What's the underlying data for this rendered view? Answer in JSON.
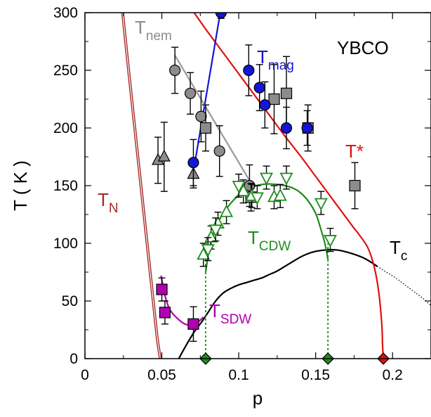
{
  "chart_data": {
    "type": "scatter",
    "title": "",
    "xlabel": "p",
    "ylabel": "T ( K )",
    "xlim": [
      0,
      0.225
    ],
    "ylim": [
      0,
      300
    ],
    "xticks": [
      0,
      0.05,
      0.1,
      0.15,
      0.2
    ],
    "xtick_labels": [
      "0",
      "0.05",
      "0.1",
      "0.15",
      "0.2"
    ],
    "yticks": [
      0,
      50,
      100,
      150,
      200,
      250,
      300
    ],
    "ytick_labels": [
      "0",
      "50",
      "100",
      "150",
      "200",
      "250",
      "300"
    ],
    "grid": false,
    "material_label": "YBCO",
    "annotations": [
      {
        "id": "tnem",
        "main": "T",
        "sub": "nem",
        "color": "#8c8c8c"
      },
      {
        "id": "tmag",
        "main": "T",
        "sub": "mag",
        "color": "#1515d6"
      },
      {
        "id": "tstar",
        "main": "T*",
        "sub": "",
        "color": "#e01010"
      },
      {
        "id": "tn",
        "main": "T",
        "sub": "N",
        "color": "#a52a2a"
      },
      {
        "id": "tcdw",
        "main": "T",
        "sub": "CDW",
        "color": "#1e8c1e"
      },
      {
        "id": "tc",
        "main": "T",
        "sub": "c",
        "color": "#000000"
      },
      {
        "id": "tsdw",
        "main": "T",
        "sub": "SDW",
        "color": "#b000b0"
      }
    ],
    "curves": [
      {
        "id": "tn",
        "color": "#a52a2a",
        "double": true,
        "dashed": false,
        "x": [
          0.0245,
          0.028,
          0.032,
          0.036,
          0.04,
          0.044,
          0.047,
          0.049
        ],
        "y": [
          300,
          255,
          205,
          155,
          105,
          55,
          18,
          0
        ]
      },
      {
        "id": "tc",
        "color": "#000000",
        "double": false,
        "dashed": false,
        "x": [
          0.061,
          0.066,
          0.071,
          0.076,
          0.08,
          0.085,
          0.09,
          0.095,
          0.1,
          0.105,
          0.11,
          0.115,
          0.12,
          0.125,
          0.13,
          0.135,
          0.14,
          0.145,
          0.15,
          0.155,
          0.16,
          0.165,
          0.17,
          0.175,
          0.18,
          0.185,
          0.19
        ],
        "y": [
          0,
          12,
          23,
          32,
          40,
          50,
          57,
          61,
          64,
          66,
          68,
          70,
          73,
          76,
          80,
          84,
          88,
          91,
          93,
          94,
          94.5,
          94,
          92.5,
          90.5,
          88,
          84.5,
          80
        ]
      },
      {
        "id": "tc-ext",
        "color": "#000000",
        "double": false,
        "dashed": true,
        "x": [
          0.19,
          0.196,
          0.202,
          0.208,
          0.214,
          0.22,
          0.225
        ],
        "y": [
          80,
          75,
          70,
          64,
          58,
          52,
          46
        ]
      },
      {
        "id": "tstar",
        "color": "#e01010",
        "double": false,
        "dashed": false,
        "x": [
          0.071,
          0.08,
          0.09,
          0.1,
          0.11,
          0.12,
          0.13,
          0.14,
          0.15,
          0.16,
          0.17,
          0.175,
          0.178,
          0.184,
          0.188,
          0.191,
          0.193,
          0.1935,
          0.194
        ],
        "y": [
          300,
          283,
          265,
          247,
          229,
          211,
          193,
          176,
          158,
          140,
          122,
          113,
          108,
          96,
          80,
          58,
          30,
          12,
          0
        ]
      },
      {
        "id": "tmag",
        "color": "#1515d6",
        "double": false,
        "dashed": false,
        "x": [
          0.0715,
          0.088
        ],
        "y": [
          170,
          300
        ]
      },
      {
        "id": "tnem",
        "color": "#999999",
        "double": false,
        "dashed": false,
        "x": [
          0.0585,
          0.109
        ],
        "y": [
          263,
          150
        ]
      },
      {
        "id": "tcdw",
        "color": "#1e8c1e",
        "double": false,
        "dashed": false,
        "x": [
          0.0785,
          0.081,
          0.085,
          0.09,
          0.095,
          0.1,
          0.105,
          0.11,
          0.115,
          0.12,
          0.125,
          0.13,
          0.135,
          0.14,
          0.145,
          0.15,
          0.153,
          0.156,
          0.158
        ],
        "y": [
          75,
          96,
          114,
          126,
          135,
          142,
          147,
          149.5,
          151,
          151.5,
          151,
          150,
          148,
          144,
          137,
          126,
          114,
          100,
          86
        ]
      },
      {
        "id": "tsdw",
        "color": "#b000b0",
        "double": false,
        "dashed": false,
        "x": [
          0.0495,
          0.052,
          0.055,
          0.06,
          0.065,
          0.07,
          0.073,
          0.077
        ],
        "y": [
          72,
          55,
          43,
          35,
          30,
          29,
          31,
          36
        ]
      }
    ],
    "dotted_lines": [
      {
        "color": "#1e8c1e",
        "x": 0.0785,
        "y_from": 0,
        "y_to": 90
      },
      {
        "color": "#1e8c1e",
        "x": 0.158,
        "y_from": 0,
        "y_to": 100
      }
    ],
    "series": [
      {
        "name": "T_nem circles",
        "marker": "circle",
        "fill": "#8c8c8c",
        "points": [
          [
            0.0585,
            250,
            20
          ],
          [
            0.0685,
            230,
            18
          ],
          [
            0.0755,
            210,
            22
          ],
          [
            0.0875,
            180,
            22
          ],
          [
            0.107,
            150,
            18
          ]
        ]
      },
      {
        "name": "T_nem triangles",
        "marker": "triangle",
        "fill": "#8c8c8c",
        "points": [
          [
            0.0475,
            172,
            20
          ],
          [
            0.0515,
            175,
            30
          ],
          [
            0.0705,
            160,
            12
          ]
        ]
      },
      {
        "name": "T* squares",
        "marker": "square",
        "fill": "#8c8c8c",
        "points": [
          [
            0.0785,
            200,
            20
          ],
          [
            0.108,
            140,
            12
          ],
          [
            0.123,
            225,
            30
          ],
          [
            0.131,
            230,
            32
          ],
          [
            0.145,
            200,
            20
          ],
          [
            0.1755,
            150,
            20
          ]
        ]
      },
      {
        "name": "T_mag",
        "marker": "circle",
        "fill": "#1515d6",
        "points": [
          [
            0.0885,
            300,
            5
          ],
          [
            0.1065,
            250,
            22
          ],
          [
            0.1135,
            235,
            20
          ],
          [
            0.117,
            220,
            20
          ],
          [
            0.131,
            200,
            18
          ],
          [
            0.1445,
            200,
            15
          ],
          [
            0.0705,
            170,
            20
          ]
        ]
      },
      {
        "name": "T_CDW up",
        "marker": "triangle",
        "fill": "none",
        "stroke": "#1e8c1e",
        "points": [
          [
            0.077,
            90,
            10
          ],
          [
            0.082,
            105,
            10
          ],
          [
            0.0865,
            117,
            10
          ],
          [
            0.092,
            127,
            10
          ],
          [
            0.103,
            145,
            10
          ],
          [
            0.1085,
            141,
            10
          ],
          [
            0.123,
            140,
            10
          ],
          [
            0.127,
            141,
            10
          ]
        ]
      },
      {
        "name": "T_CDW down",
        "marker": "triangle-down",
        "fill": "none",
        "stroke": "#1e8c1e",
        "points": [
          [
            0.08,
            95,
            10
          ],
          [
            0.085,
            112,
            10
          ],
          [
            0.1,
            150,
            10
          ],
          [
            0.112,
            140,
            10
          ],
          [
            0.118,
            157,
            10
          ],
          [
            0.131,
            157,
            10
          ],
          [
            0.1535,
            135,
            10
          ],
          [
            0.1595,
            103,
            10
          ]
        ]
      },
      {
        "name": "T_SDW",
        "marker": "square",
        "fill": "#b000b0",
        "points": [
          [
            0.05,
            60,
            10
          ],
          [
            0.052,
            40,
            10
          ],
          [
            0.0705,
            30,
            15
          ]
        ]
      },
      {
        "name": "p-axis markers",
        "marker": "diamond",
        "fill": "#1e8c1e",
        "points": [
          [
            0.0785,
            0,
            0
          ],
          [
            0.158,
            0,
            0
          ]
        ]
      },
      {
        "name": "p* marker",
        "marker": "diamond",
        "fill": "#e01010",
        "points": [
          [
            0.194,
            0,
            0
          ]
        ]
      }
    ]
  }
}
